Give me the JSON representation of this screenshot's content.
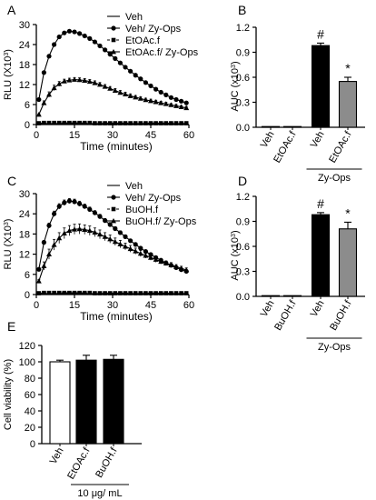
{
  "chart_data": [
    {
      "panel": "A",
      "type": "line",
      "xlabel": "Time (minutes)",
      "ylabel_main": "RLU (X10",
      "ylabel_sup": "3",
      "ylabel_end": ")",
      "xlim": [
        0,
        60
      ],
      "ylim": [
        0,
        30
      ],
      "xticks": [
        0,
        15,
        30,
        45,
        60
      ],
      "yticks": [
        0,
        6,
        12,
        18,
        24,
        30
      ],
      "legend_position": "top-right",
      "x": [
        1,
        3,
        5,
        7,
        9,
        11,
        13,
        15,
        17,
        19,
        21,
        23,
        25,
        27,
        29,
        31,
        33,
        35,
        37,
        39,
        41,
        43,
        45,
        47,
        49,
        51,
        53,
        55,
        57,
        59
      ],
      "series": [
        {
          "name": "Veh",
          "marker": "line",
          "values": [
            0.3,
            0.3,
            0.3,
            0.3,
            0.3,
            0.3,
            0.3,
            0.3,
            0.3,
            0.3,
            0.3,
            0.3,
            0.3,
            0.3,
            0.3,
            0.3,
            0.3,
            0.3,
            0.3,
            0.3,
            0.3,
            0.3,
            0.3,
            0.3,
            0.3,
            0.3,
            0.3,
            0.3,
            0.3,
            0.3
          ]
        },
        {
          "name": "Veh/ Zy-Ops",
          "marker": "circle",
          "values": [
            7.5,
            15.6,
            20.5,
            24.0,
            26.3,
            27.5,
            28.0,
            27.8,
            27.3,
            26.6,
            25.8,
            24.8,
            23.6,
            22.4,
            21.1,
            19.8,
            18.5,
            17.2,
            16.0,
            14.8,
            13.7,
            12.6,
            11.6,
            10.6,
            9.7,
            8.9,
            8.1,
            7.5,
            7.0,
            6.5
          ]
        },
        {
          "name": "EtOAc.f",
          "marker": "square",
          "values": [
            0.4,
            0.5,
            0.5,
            0.5,
            0.5,
            0.5,
            0.5,
            0.5,
            0.5,
            0.5,
            0.5,
            0.4,
            0.4,
            0.4,
            0.4,
            0.4,
            0.4,
            0.4,
            0.4,
            0.4,
            0.4,
            0.4,
            0.4,
            0.4,
            0.4,
            0.4,
            0.4,
            0.4,
            0.4,
            0.4
          ]
        },
        {
          "name": "EtOAc.f/ Zy-Ops",
          "marker": "triangle",
          "values": [
            3.0,
            6.5,
            9.0,
            11.0,
            12.2,
            13.0,
            13.3,
            13.5,
            13.4,
            13.2,
            12.9,
            12.5,
            12.0,
            11.4,
            10.8,
            10.2,
            9.6,
            9.1,
            8.6,
            8.2,
            7.8,
            7.4,
            7.1,
            6.8,
            6.5,
            6.2,
            5.9,
            5.6,
            5.3,
            5.0
          ]
        }
      ],
      "error_values": [
        0.2,
        0.6,
        0.8,
        0.8,
        0.7,
        0.6,
        0.6,
        0.6,
        0.6,
        0.6,
        0.6,
        0.6,
        0.6,
        0.6,
        0.6,
        0.6,
        0.6,
        0.6,
        0.6,
        0.5,
        0.5,
        0.5,
        0.5,
        0.5,
        0.5,
        0.5,
        0.4,
        0.4,
        0.4,
        0.4
      ]
    },
    {
      "panel": "B",
      "type": "bar",
      "ylabel_main": "AUC (x10",
      "ylabel_sup": "3",
      "ylabel_end": ")",
      "ylim": [
        0,
        1.2
      ],
      "yticks": [
        "0.0",
        "0.3",
        "0.6",
        "0.9",
        "1.2"
      ],
      "categories": [
        "Veh",
        "EtOAc.f",
        "Veh",
        "EtOAc.f"
      ],
      "values": [
        0.005,
        0.005,
        0.98,
        0.55
      ],
      "errors": [
        0.002,
        0.002,
        0.03,
        0.05
      ],
      "fills": [
        "#ffffff",
        "#ffffff",
        "#000000",
        "#8c8c8c"
      ],
      "annotations": [
        "",
        "",
        "#",
        "*"
      ],
      "group_label": "Zy-Ops"
    },
    {
      "panel": "C",
      "type": "line",
      "xlabel": "Time (minutes)",
      "ylabel_main": "RLU (X10",
      "ylabel_sup": "3",
      "ylabel_end": ")",
      "xlim": [
        0,
        60
      ],
      "ylim": [
        0,
        30
      ],
      "xticks": [
        0,
        15,
        30,
        45,
        60
      ],
      "yticks": [
        0,
        6,
        12,
        18,
        24,
        30
      ],
      "legend_position": "top-right",
      "x": [
        1,
        3,
        5,
        7,
        9,
        11,
        13,
        15,
        17,
        19,
        21,
        23,
        25,
        27,
        29,
        31,
        33,
        35,
        37,
        39,
        41,
        43,
        45,
        47,
        49,
        51,
        53,
        55,
        57,
        59
      ],
      "series": [
        {
          "name": "Veh",
          "marker": "line",
          "values": [
            0.3,
            0.3,
            0.3,
            0.3,
            0.3,
            0.3,
            0.3,
            0.3,
            0.3,
            0.3,
            0.3,
            0.3,
            0.3,
            0.3,
            0.3,
            0.3,
            0.3,
            0.3,
            0.3,
            0.3,
            0.3,
            0.3,
            0.3,
            0.3,
            0.3,
            0.3,
            0.3,
            0.3,
            0.3,
            0.3
          ]
        },
        {
          "name": "Veh/ Zy-Ops",
          "marker": "circle",
          "values": [
            7.5,
            15.5,
            20.5,
            24.0,
            26.2,
            27.3,
            27.8,
            27.6,
            27.0,
            26.2,
            25.3,
            24.3,
            23.2,
            22.0,
            20.8,
            19.6,
            18.4,
            17.2,
            16.0,
            14.9,
            13.8,
            12.8,
            11.9,
            11.0,
            10.2,
            9.4,
            8.7,
            8.0,
            7.4,
            6.9
          ]
        },
        {
          "name": "BuOH.f",
          "marker": "square",
          "values": [
            0.4,
            0.5,
            0.5,
            0.5,
            0.5,
            0.5,
            0.5,
            0.5,
            0.5,
            0.5,
            0.5,
            0.4,
            0.4,
            0.4,
            0.4,
            0.4,
            0.4,
            0.4,
            0.4,
            0.4,
            0.4,
            0.4,
            0.4,
            0.4,
            0.4,
            0.4,
            0.4,
            0.4,
            0.4,
            0.4
          ]
        },
        {
          "name": "BuOH.f/ Zy-Ops",
          "marker": "triangle",
          "values": [
            4.0,
            8.5,
            12.0,
            14.8,
            16.8,
            18.2,
            19.0,
            19.4,
            19.5,
            19.3,
            19.0,
            18.5,
            17.9,
            17.2,
            16.5,
            15.7,
            15.0,
            14.3,
            13.6,
            12.9,
            12.2,
            11.6,
            11.0,
            10.4,
            9.8,
            9.3,
            8.8,
            8.3,
            7.8,
            7.3
          ]
        }
      ],
      "error_values": [
        0.4,
        1.2,
        1.5,
        1.6,
        1.6,
        1.6,
        1.5,
        1.5,
        1.5,
        1.4,
        1.4,
        1.3,
        1.3,
        1.2,
        1.2,
        1.1,
        1.1,
        1.0,
        1.0,
        0.9,
        0.9,
        0.8,
        0.8,
        0.8,
        0.7,
        0.7,
        0.7,
        0.6,
        0.6,
        0.6
      ]
    },
    {
      "panel": "D",
      "type": "bar",
      "ylabel_main": "AUC (x10",
      "ylabel_sup": "3",
      "ylabel_end": ")",
      "ylim": [
        0,
        1.2
      ],
      "yticks": [
        "0.0",
        "0.3",
        "0.6",
        "0.9",
        "1.2"
      ],
      "categories": [
        "Veh",
        "BuOH.f",
        "Veh",
        "BuOH.f"
      ],
      "values": [
        0.005,
        0.005,
        0.98,
        0.81
      ],
      "errors": [
        0.002,
        0.002,
        0.025,
        0.08
      ],
      "fills": [
        "#ffffff",
        "#ffffff",
        "#000000",
        "#8c8c8c"
      ],
      "annotations": [
        "",
        "",
        "#",
        "*"
      ],
      "group_label": "Zy-Ops"
    },
    {
      "panel": "E",
      "type": "bar",
      "ylabel": "Cell viability (%)",
      "ylim": [
        0,
        120
      ],
      "yticks": [
        "0",
        "20",
        "40",
        "60",
        "80",
        "100",
        "120"
      ],
      "categories": [
        "Veh",
        "EtOAc.f",
        "BuOH.f"
      ],
      "values": [
        100,
        102,
        103
      ],
      "errors": [
        2,
        6,
        5
      ],
      "fills": [
        "#ffffff",
        "#000000",
        "#000000"
      ],
      "annotations": [
        "",
        "",
        ""
      ],
      "group_label": "10 μg/ mL"
    }
  ]
}
